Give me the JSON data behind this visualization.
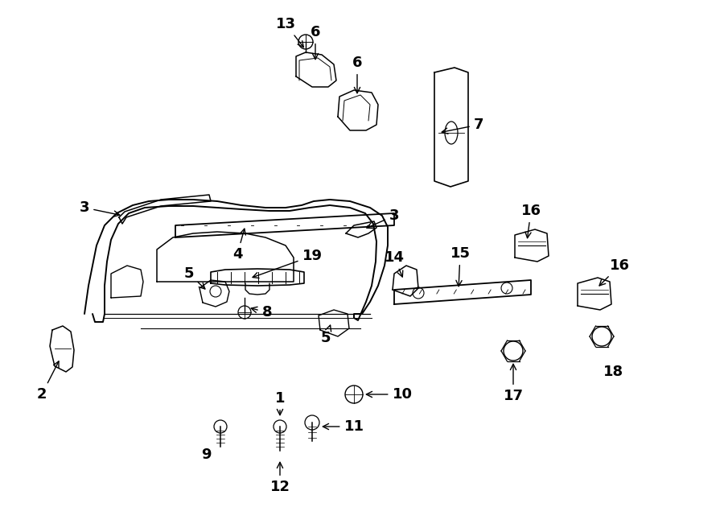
{
  "bg_color": "#ffffff",
  "line_color": "#000000"
}
